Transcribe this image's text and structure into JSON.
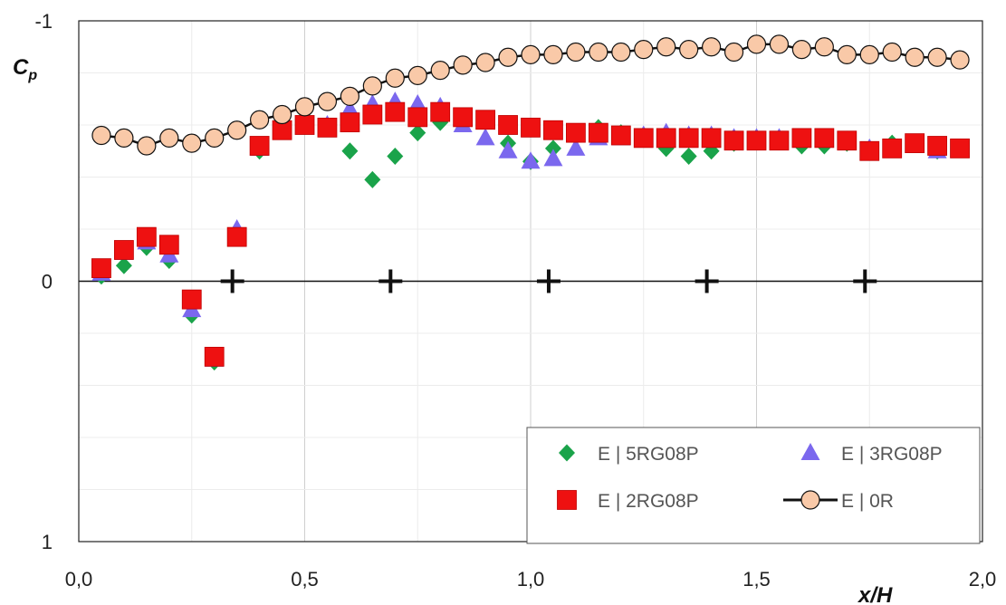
{
  "chart_data": {
    "type": "scatter",
    "xlabel": "x/H",
    "ylabel_main": "C",
    "ylabel_sub": "p",
    "xlim": [
      0,
      2.0
    ],
    "ylim": [
      -1,
      1
    ],
    "y_inverted": true,
    "x_ticks": [
      "0,0",
      "0,5",
      "1,0",
      "1,5",
      "2,0"
    ],
    "x_tick_values": [
      0,
      0.5,
      1.0,
      1.5,
      2.0
    ],
    "y_ticks": [
      "-1",
      "0",
      "1"
    ],
    "y_tick_values": [
      -1,
      0,
      1
    ],
    "legend_position": "bottom-right",
    "series": [
      {
        "name": "E | 5RG08P",
        "marker": "diamond",
        "color": "#1aa34a",
        "x": [
          0.05,
          0.1,
          0.15,
          0.2,
          0.25,
          0.3,
          0.35,
          0.4,
          0.45,
          0.5,
          0.55,
          0.6,
          0.65,
          0.7,
          0.75,
          0.8,
          0.85,
          0.9,
          0.95,
          1.0,
          1.05,
          1.1,
          1.15,
          1.2,
          1.25,
          1.3,
          1.35,
          1.4,
          1.45,
          1.5,
          1.55,
          1.6,
          1.65,
          1.7,
          1.75,
          1.8,
          1.85,
          1.9,
          1.95
        ],
        "y": [
          -0.02,
          -0.06,
          -0.13,
          -0.08,
          0.13,
          0.31,
          -0.18,
          -0.5,
          -0.63,
          -0.65,
          -0.6,
          -0.5,
          -0.39,
          -0.48,
          -0.57,
          -0.61,
          -0.62,
          -0.62,
          -0.53,
          -0.46,
          -0.51,
          -0.56,
          -0.59,
          -0.57,
          -0.55,
          -0.51,
          -0.48,
          -0.5,
          -0.53,
          -0.55,
          -0.54,
          -0.52,
          -0.52,
          -0.53,
          -0.5,
          -0.53,
          -0.53,
          -0.5,
          -0.51
        ]
      },
      {
        "name": "E | 3RG08P",
        "marker": "triangle",
        "color": "#7b68ee",
        "x": [
          0.05,
          0.1,
          0.15,
          0.2,
          0.25,
          0.3,
          0.35,
          0.4,
          0.45,
          0.5,
          0.55,
          0.6,
          0.65,
          0.7,
          0.75,
          0.8,
          0.85,
          0.9,
          0.95,
          1.0,
          1.05,
          1.1,
          1.15,
          1.2,
          1.25,
          1.3,
          1.35,
          1.4,
          1.45,
          1.5,
          1.55,
          1.6,
          1.65,
          1.7,
          1.75,
          1.8,
          1.85,
          1.9,
          1.95
        ],
        "y": [
          -0.03,
          -0.11,
          -0.15,
          -0.1,
          0.11,
          0.3,
          -0.2,
          -0.51,
          -0.58,
          -0.62,
          -0.6,
          -0.66,
          -0.68,
          -0.69,
          -0.68,
          -0.67,
          -0.6,
          -0.55,
          -0.5,
          -0.46,
          -0.47,
          -0.51,
          -0.55,
          -0.55,
          -0.56,
          -0.57,
          -0.56,
          -0.56,
          -0.55,
          -0.55,
          -0.55,
          -0.55,
          -0.55,
          -0.54,
          -0.51,
          -0.51,
          -0.52,
          -0.5,
          -0.51
        ]
      },
      {
        "name": "E | 2RG08P",
        "marker": "square",
        "color": "#ee1111",
        "x": [
          0.05,
          0.1,
          0.15,
          0.2,
          0.25,
          0.3,
          0.35,
          0.4,
          0.45,
          0.5,
          0.55,
          0.6,
          0.65,
          0.7,
          0.75,
          0.8,
          0.85,
          0.9,
          0.95,
          1.0,
          1.05,
          1.1,
          1.15,
          1.2,
          1.25,
          1.3,
          1.35,
          1.4,
          1.45,
          1.5,
          1.55,
          1.6,
          1.65,
          1.7,
          1.75,
          1.8,
          1.85,
          1.9,
          1.95
        ],
        "y": [
          -0.05,
          -0.12,
          -0.17,
          -0.14,
          0.07,
          0.29,
          -0.17,
          -0.52,
          -0.58,
          -0.6,
          -0.59,
          -0.61,
          -0.64,
          -0.65,
          -0.63,
          -0.65,
          -0.63,
          -0.62,
          -0.6,
          -0.59,
          -0.58,
          -0.57,
          -0.57,
          -0.56,
          -0.55,
          -0.55,
          -0.55,
          -0.55,
          -0.54,
          -0.54,
          -0.54,
          -0.55,
          -0.55,
          -0.54,
          -0.5,
          -0.51,
          -0.53,
          -0.52,
          -0.51
        ]
      },
      {
        "name": "E | 0R",
        "marker": "circle-line",
        "color": "#f9c9a8",
        "line_color": "#111111",
        "x": [
          0.05,
          0.1,
          0.15,
          0.2,
          0.25,
          0.3,
          0.35,
          0.4,
          0.45,
          0.5,
          0.55,
          0.6,
          0.65,
          0.7,
          0.75,
          0.8,
          0.85,
          0.9,
          0.95,
          1.0,
          1.05,
          1.1,
          1.15,
          1.2,
          1.25,
          1.3,
          1.35,
          1.4,
          1.45,
          1.5,
          1.55,
          1.6,
          1.65,
          1.7,
          1.75,
          1.8,
          1.85,
          1.9,
          1.95
        ],
        "y": [
          -0.56,
          -0.55,
          -0.52,
          -0.55,
          -0.53,
          -0.55,
          -0.58,
          -0.62,
          -0.64,
          -0.67,
          -0.69,
          -0.71,
          -0.75,
          -0.78,
          -0.79,
          -0.81,
          -0.83,
          -0.84,
          -0.86,
          -0.87,
          -0.87,
          -0.88,
          -0.88,
          -0.88,
          -0.89,
          -0.9,
          -0.89,
          -0.9,
          -0.88,
          -0.91,
          -0.91,
          -0.89,
          -0.9,
          -0.87,
          -0.87,
          -0.88,
          -0.86,
          -0.86,
          -0.85
        ]
      }
    ],
    "zero_line_markers": {
      "marker": "plus",
      "color": "#111111",
      "x": [
        0.34,
        0.69,
        1.04,
        1.39,
        1.74
      ],
      "y": [
        0,
        0,
        0,
        0,
        0
      ]
    }
  }
}
